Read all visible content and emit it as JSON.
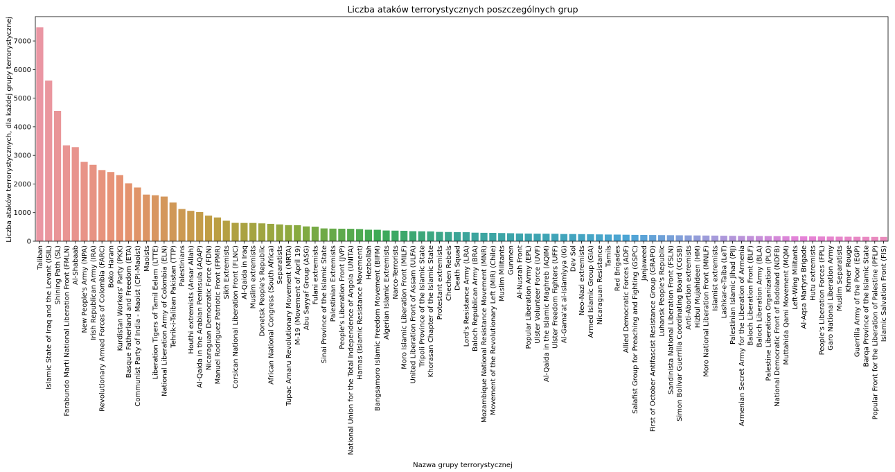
{
  "chart_data": {
    "type": "bar",
    "title": "Liczba ataków terrorystycznych poszczególnych grup",
    "xlabel": "Nazwa grupy terrorystycznej",
    "ylabel": "Liczba ataków terrorystycznych, dla każdej grupy terrorystycznej",
    "ylim": [
      0,
      7850
    ],
    "yticks": [
      0,
      1000,
      2000,
      3000,
      4000,
      5000,
      6000,
      7000
    ],
    "grid": false,
    "categories": [
      "Taliban",
      "Islamic State of Iraq and the Levant (ISIL)",
      "Shining Path (SL)",
      "Farabundo Marti National Liberation Front (FMLN)",
      "Al-Shabaab",
      "New People's Army (NPA)",
      "Irish Republican Army (IRA)",
      "Revolutionary Armed Forces of Colombia (FARC)",
      "Boko Haram",
      "Kurdistan Workers' Party (PKK)",
      "Basque Fatherland and Freedom (ETA)",
      "Communist Party of India - Maoist (CPI-Maoist)",
      "Maoists",
      "Liberation Tigers of Tamil Eelam (LTTE)",
      "National Liberation Army of Colombia (ELN)",
      "Tehrik-i-Taliban Pakistan (TTP)",
      "Palestinians",
      "Houthi extremists (Ansar Allah)",
      "Al-Qaida in the Arabian Peninsula (AQAP)",
      "Nicaraguan Democratic Force (FDN)",
      "Manuel Rodriguez Patriotic Front (FPMR)",
      "Sikh Extremists",
      "Corsican National Liberation Front (FLNC)",
      "Al-Qaida in Iraq",
      "Muslim extremists",
      "Donetsk People's Republic",
      "African National Congress (South Africa)",
      "Separatists",
      "Tupac Amaru Revolutionary Movement (MRTA)",
      "M-19 (Movement of April 19)",
      "Abu Sayyaf Group (ASG)",
      "Fulani extremists",
      "Sinai Province of the Islamic State",
      "Palestinian Extremists",
      "People's Liberation Front (JVP)",
      "National Union for the Total Independence of Angola (UNITA)",
      "Hamas (Islamic Resistance Movement)",
      "Hezbollah",
      "Bangsamoro Islamic Freedom Movement (BIFM)",
      "Algerian Islamic Extremists",
      "Narco-Terrorists",
      "Moro Islamic Liberation Front (MILF)",
      "United Liberation Front of Assam (ULFA)",
      "Tripoli Province of the Islamic State",
      "Khorasan Chapter of the Islamic State",
      "Protestant extremists",
      "Chechen Rebels",
      "Death Squad",
      "Lord's Resistance Army (LRA)",
      "Baloch Republican Army (BRA)",
      "Mozambique National Resistance Movement (MNR)",
      "Movement of the Revolutionary Left (MIR) (Chile)",
      "Muslim Militants",
      "Gunmen",
      "Al-Nusrah Front",
      "Popular Liberation Army (EPL)",
      "Ulster Volunteer Force (UVF)",
      "Al-Qaida in the Islamic Maghreb (AQIM)",
      "Ulster Freedom Fighters (UFF)",
      "Al-Gama'at al-Islamiyya (IG)",
      "Dev Sol",
      "Neo-Nazi extremists",
      "Armed Islamic Group (GIA)",
      "Nicaraguan Resistance",
      "Tamils",
      "Red Brigades",
      "Allied Democratic Forces (ADF)",
      "Salafist Group for Preaching and Fighting (GSPC)",
      "Janjaweed",
      "First of October Antifascist Resistance Group (GRAPO)",
      "Luhansk People's Republic",
      "Sandinista National Liberation Front (FSLN)",
      "Simon Bolivar Guerrilla Coordinating Board (CGSB)",
      "Anti-Abortion extremists",
      "Hizbul Mujahideen (HM)",
      "Moro National Liberation Front (MNLF)",
      "Islamist extremists",
      "Lashkar-e-Taiba (LeT)",
      "Palestinian Islamic Jihad (PIJ)",
      "Armenian Secret Army for the Liberation of Armenia",
      "Baloch Liberation Front (BLF)",
      "Baloch Liberation Army (BLA)",
      "Palestine Liberation Organization (PLO)",
      "National Democratic Front of Bodoland (NDFB)",
      "Muttahida Qami Movement (MQM)",
      "Left-Wing Militants",
      "Al-Aqsa Martyrs Brigade",
      "Hutu extremists",
      "People's Liberation Forces (FPL)",
      "Garo National Liberation Army",
      "Muslim Separatists",
      "Khmer Rouge",
      "Guerrilla Army of the Poor (EGP)",
      "Barqa Province of the Islamic State",
      "Popular Front for the Liberation of Palestine (PFLP)",
      "Islamic Salvation Front (FIS)"
    ],
    "values": [
      7478,
      5613,
      4555,
      3351,
      3288,
      2772,
      2671,
      2487,
      2418,
      2310,
      2024,
      1878,
      1630,
      1606,
      1561,
      1351,
      1125,
      1062,
      1020,
      895,
      830,
      716,
      641,
      638,
      638,
      624,
      607,
      587,
      562,
      559,
      517,
      509,
      447,
      440,
      437,
      434,
      424,
      401,
      399,
      374,
      369,
      364,
      350,
      346,
      342,
      325,
      321,
      317,
      314,
      298,
      293,
      291,
      285,
      279,
      270,
      267,
      263,
      262,
      260,
      251,
      250,
      247,
      242,
      238,
      233,
      231,
      226,
      221,
      218,
      216,
      213,
      210,
      207,
      203,
      201,
      198,
      196,
      191,
      188,
      185,
      183,
      181,
      179,
      176,
      174,
      172,
      169,
      167,
      165,
      162,
      159,
      157,
      155,
      153,
      151,
      150
    ],
    "colors": {
      "palette": [
        "#ea96a3",
        "#e69270",
        "#c09d44",
        "#8caa3f",
        "#3daa55",
        "#3ca59a",
        "#3ea4b4",
        "#4da5d6",
        "#a69bdb",
        "#e582d8",
        "#ea8bbc"
      ]
    }
  }
}
